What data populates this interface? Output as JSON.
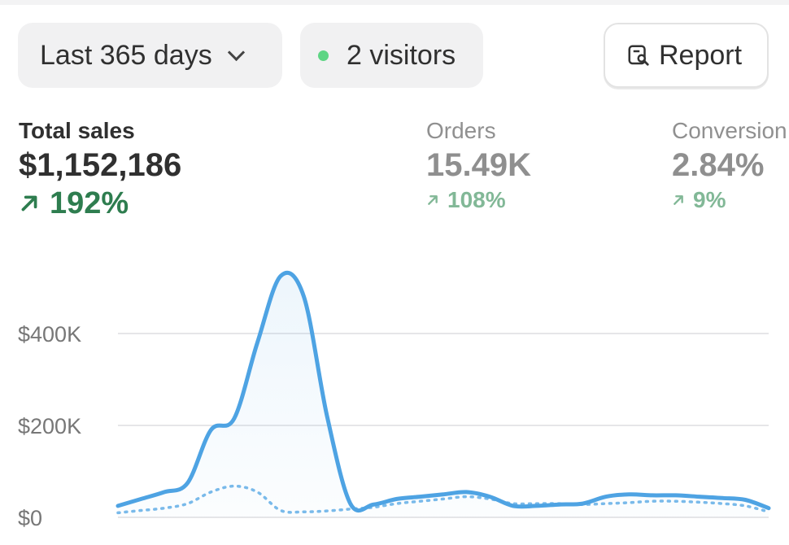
{
  "filters": {
    "date_range": "Last 365 days",
    "visitors": "2 visitors",
    "visitor_dot_color": "#5ed584"
  },
  "report_button": {
    "label": "Report",
    "icon": "report-search-icon"
  },
  "metrics": [
    {
      "label": "Total sales",
      "value": "$1,152,186",
      "change": "192%",
      "direction": "up"
    },
    {
      "label": "Orders",
      "value": "15.49K",
      "change": "108%",
      "direction": "up"
    },
    {
      "label": "Conversion",
      "value": "2.84%",
      "change": "9%",
      "direction": "up"
    }
  ],
  "colors": {
    "line": "#4ea3e3",
    "positive": "#2e7d4f",
    "positive_muted": "#82b897"
  },
  "chart_data": {
    "type": "area",
    "ylim": [
      0,
      560000
    ],
    "yticks": [
      {
        "value": 0,
        "label": "$0"
      },
      {
        "value": 200000,
        "label": "$200K"
      },
      {
        "value": 400000,
        "label": "$400K"
      }
    ],
    "series": [
      {
        "values": [
          25000,
          40000,
          55000,
          75000,
          190000,
          215000,
          380000,
          525000,
          480000,
          220000,
          30000,
          28000,
          40000,
          45000,
          50000,
          55000,
          45000,
          25000,
          25000,
          28000,
          30000,
          45000,
          50000,
          48000,
          48000,
          45000,
          42000,
          38000,
          20000
        ]
      },
      {
        "values": [
          10000,
          15000,
          20000,
          30000,
          55000,
          68000,
          55000,
          15000,
          12000,
          14000,
          18000,
          22000,
          30000,
          35000,
          40000,
          45000,
          40000,
          30000,
          30000,
          30000,
          28000,
          30000,
          32000,
          35000,
          35000,
          33000,
          30000,
          25000,
          12000
        ]
      }
    ]
  }
}
